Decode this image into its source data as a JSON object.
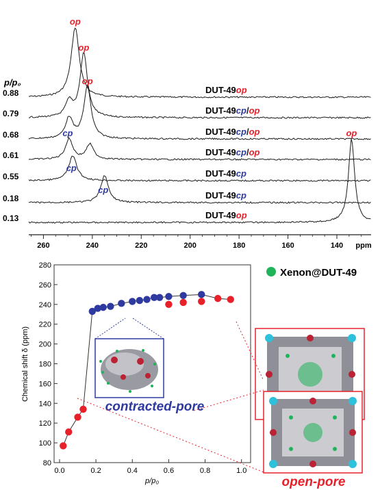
{
  "colors": {
    "op": "#e8202a",
    "cp": "#2e3a9f",
    "trace": "#1a1a1a",
    "xenon": "#1fb35a"
  },
  "chart_data": [
    {
      "type": "line",
      "title": "",
      "pressure_axis_label": "p/p₀",
      "xlabel": "ppm",
      "xlim": [
        266,
        126
      ],
      "x_ticks": [
        "260",
        "240",
        "220",
        "200",
        "180",
        "160",
        "140",
        "ppm"
      ],
      "x_tick_values": [
        260,
        240,
        220,
        200,
        180,
        160,
        140
      ],
      "series": [
        {
          "name": "DUT-49op",
          "sample": "DUT-49",
          "tags": [
            {
              "t": "op",
              "c": "op"
            }
          ],
          "pressure": "0.88",
          "peaks": [
            {
              "ppm": 247,
              "height": 102,
              "width": 2.0,
              "label": "op",
              "lc": "op"
            }
          ]
        },
        {
          "name": "DUT-49cp/op",
          "sample": "DUT-49",
          "tags": [
            {
              "t": "cp",
              "c": "cp"
            },
            {
              "t": "/",
              "c": "trace"
            },
            {
              "t": "op",
              "c": "op"
            }
          ],
          "pressure": "0.79",
          "peaks": [
            {
              "ppm": 249.5,
              "height": 22,
              "width": 1.8,
              "label": "",
              "lc": "cp"
            },
            {
              "ppm": 243.5,
              "height": 94,
              "width": 1.8,
              "label": "op",
              "lc": "op"
            }
          ]
        },
        {
          "name": "DUT-49cp/op",
          "sample": "DUT-49",
          "tags": [
            {
              "t": "cp",
              "c": "cp"
            },
            {
              "t": "/",
              "c": "trace"
            },
            {
              "t": "op",
              "c": "op"
            }
          ],
          "pressure": "0.68",
          "peaks": [
            {
              "ppm": 249.5,
              "height": 30,
              "width": 1.8,
              "label": "",
              "lc": "cp"
            },
            {
              "ppm": 242,
              "height": 76,
              "width": 1.8,
              "label": "op",
              "lc": "op"
            }
          ]
        },
        {
          "name": "DUT-49cp/op",
          "sample": "DUT-49",
          "tags": [
            {
              "t": "cp",
              "c": "cp"
            },
            {
              "t": "/",
              "c": "trace"
            },
            {
              "t": "op",
              "c": "op"
            }
          ],
          "pressure": "0.61",
          "peaks": [
            {
              "ppm": 249.5,
              "height": 30,
              "width": 1.8,
              "label": "cp",
              "lc": "cp"
            },
            {
              "ppm": 241,
              "height": 22,
              "width": 1.8,
              "label": "",
              "lc": "op"
            }
          ]
        },
        {
          "name": "DUT-49cp",
          "sample": "DUT-49",
          "tags": [
            {
              "t": "cp",
              "c": "cp"
            }
          ],
          "pressure": "0.55",
          "peaks": [
            {
              "ppm": 248,
              "height": 36,
              "width": 2.0,
              "label": "cp",
              "lc": "cp"
            }
          ]
        },
        {
          "name": "DUT-49cp",
          "sample": "DUT-49",
          "tags": [
            {
              "t": "cp",
              "c": "cp"
            }
          ],
          "pressure": "0.18",
          "peaks": [
            {
              "ppm": 235,
              "height": 40,
              "width": 1.8,
              "label": "cp",
              "lc": "cp"
            }
          ]
        },
        {
          "name": "DUT-49op",
          "sample": "DUT-49",
          "tags": [
            {
              "t": "op",
              "c": "op"
            }
          ],
          "pressure": "0.13",
          "peaks": [
            {
              "ppm": 134,
              "height": 122,
              "width": 1.5,
              "label": "op",
              "lc": "op"
            }
          ]
        }
      ]
    },
    {
      "type": "scatter",
      "title": "",
      "xlabel": "p/p₀",
      "ylabel": "Chemical shift δ (ppm)",
      "xlim": [
        -0.03,
        1.05
      ],
      "ylim": [
        80,
        280
      ],
      "x_ticks": [
        0.0,
        0.2,
        0.4,
        0.6,
        0.8,
        1.0
      ],
      "y_ticks": [
        80,
        100,
        120,
        140,
        160,
        180,
        200,
        220,
        240,
        260,
        280
      ],
      "legend": "Xenon@DUT-49",
      "legend_position": "top-right outside",
      "annotations": [
        "contracted-pore",
        "open-pore"
      ],
      "series": [
        {
          "name": "op",
          "color": "op",
          "x": [
            0.02,
            0.05,
            0.1,
            0.13,
            0.6,
            0.68,
            0.78,
            0.87,
            0.94
          ],
          "y": [
            97,
            111,
            126,
            134,
            240,
            242,
            243,
            246,
            245
          ]
        },
        {
          "name": "cp",
          "color": "cp",
          "x": [
            0.18,
            0.21,
            0.24,
            0.28,
            0.34,
            0.4,
            0.44,
            0.48,
            0.52,
            0.55,
            0.6,
            0.68,
            0.78
          ],
          "y": [
            233,
            236,
            237,
            238,
            241,
            243,
            244,
            245,
            247,
            247,
            248,
            249,
            250
          ]
        }
      ],
      "path": {
        "x": [
          0.02,
          0.05,
          0.1,
          0.13,
          0.18,
          0.21,
          0.24,
          0.28,
          0.34,
          0.4,
          0.44,
          0.48,
          0.52,
          0.55,
          0.6,
          0.68,
          0.78,
          0.87,
          0.94
        ],
        "y": [
          97,
          111,
          126,
          134,
          233,
          236,
          237,
          238,
          241,
          243,
          244,
          245,
          247,
          247,
          248,
          249,
          250,
          246,
          245
        ]
      }
    }
  ]
}
